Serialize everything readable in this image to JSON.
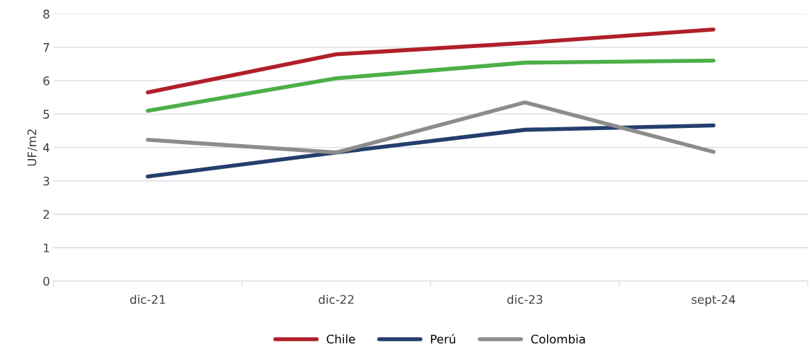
{
  "chart_data": {
    "type": "line",
    "ylabel": "UF/m2",
    "categories": [
      "dic-21",
      "dic-22",
      "dic-23",
      "sept-24"
    ],
    "series": [
      {
        "name": "Chile",
        "color": "#b01f2a",
        "values": [
          5.65,
          6.79,
          7.13,
          7.53
        ]
      },
      {
        "name": "Perú",
        "color": "#243f6e",
        "values": [
          3.13,
          3.85,
          4.53,
          4.66
        ]
      },
      {
        "name": "Colombia",
        "color": "#8c8c8c",
        "values": [
          4.23,
          3.85,
          5.35,
          3.87
        ]
      },
      {
        "color": "#4caf48",
        "values": [
          5.1,
          6.07,
          6.54,
          6.6
        ]
      }
    ],
    "ylim": [
      0,
      8
    ],
    "yticks": [
      0,
      1,
      2,
      3,
      4,
      5,
      6,
      7,
      8
    ],
    "grid": "y",
    "legend": "bottom",
    "marker": "none",
    "line_style": "solid"
  }
}
